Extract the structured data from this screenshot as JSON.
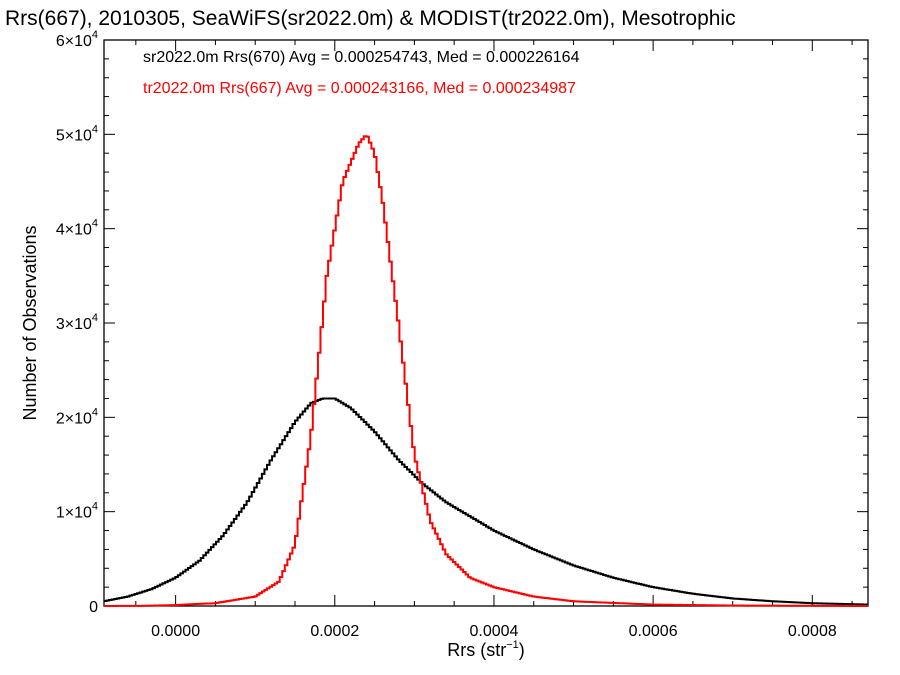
{
  "chart_data": {
    "type": "line",
    "title": "Rrs(667), 2010305, SeaWiFS(sr2022.0m) & MODIST(tr2022.0m), Mesotrophic",
    "xlabel": "Rrs (str",
    "xlabel_sup": "−1",
    "xlabel_close": ")",
    "ylabel": "Number of Observations",
    "xlim": [
      -9e-05,
      0.00087
    ],
    "ylim": [
      0,
      60000
    ],
    "x_ticks": [
      0.0,
      0.0002,
      0.0004,
      0.0006,
      0.0008
    ],
    "x_tick_labels": [
      "0.0000",
      "0.0002",
      "0.0004",
      "0.0006",
      "0.0008"
    ],
    "y_ticks": [
      0,
      10000,
      20000,
      30000,
      40000,
      50000,
      60000
    ],
    "y_tick_labels": [
      {
        "base": "0",
        "exp": ""
      },
      {
        "base": "1×10",
        "exp": "4"
      },
      {
        "base": "2×10",
        "exp": "4"
      },
      {
        "base": "3×10",
        "exp": "4"
      },
      {
        "base": "4×10",
        "exp": "4"
      },
      {
        "base": "5×10",
        "exp": "4"
      },
      {
        "base": "6×10",
        "exp": "4"
      }
    ],
    "annotations": [
      {
        "text": "sr2022.0m Rrs(670) Avg = 0.000254743, Med = 0.000226164",
        "color": "#000000"
      },
      {
        "text": "tr2022.0m Rrs(667) Avg = 0.000243166, Med = 0.000234987",
        "color": "#ff0000"
      }
    ],
    "series": [
      {
        "color": "#000000",
        "x": [
          -9e-05,
          -6e-05,
          -3e-05,
          0.0,
          3e-05,
          6e-05,
          9e-05,
          0.00012,
          0.00015,
          0.00017,
          0.000185,
          0.0002,
          0.00022,
          0.00025,
          0.00028,
          0.00031,
          0.00034,
          0.00037,
          0.0004,
          0.00045,
          0.0005,
          0.00055,
          0.0006,
          0.00065,
          0.0007,
          0.00075,
          0.0008,
          0.00087
        ],
        "y": [
          500,
          1000,
          1800,
          3000,
          4800,
          7500,
          11000,
          15500,
          19500,
          21500,
          22000,
          22000,
          21000,
          18500,
          15500,
          13000,
          11000,
          9500,
          8000,
          6000,
          4300,
          3000,
          2000,
          1300,
          800,
          500,
          300,
          150
        ]
      },
      {
        "color": "#ff0000",
        "x": [
          -9e-05,
          -4e-05,
          0.0,
          5e-05,
          0.0001,
          0.00013,
          0.00015,
          0.00017,
          0.00019,
          0.00021,
          0.00023,
          0.00024,
          0.00025,
          0.00026,
          0.00028,
          0.0003,
          0.00032,
          0.00034,
          0.00037,
          0.0004,
          0.00045,
          0.0005,
          0.0006,
          0.0007,
          0.00087
        ],
        "y": [
          0,
          20,
          100,
          300,
          1000,
          2600,
          6500,
          18000,
          35000,
          45000,
          49000,
          50000,
          48000,
          43000,
          30000,
          16000,
          9000,
          5500,
          3000,
          2000,
          1000,
          500,
          150,
          50,
          0
        ]
      }
    ]
  }
}
